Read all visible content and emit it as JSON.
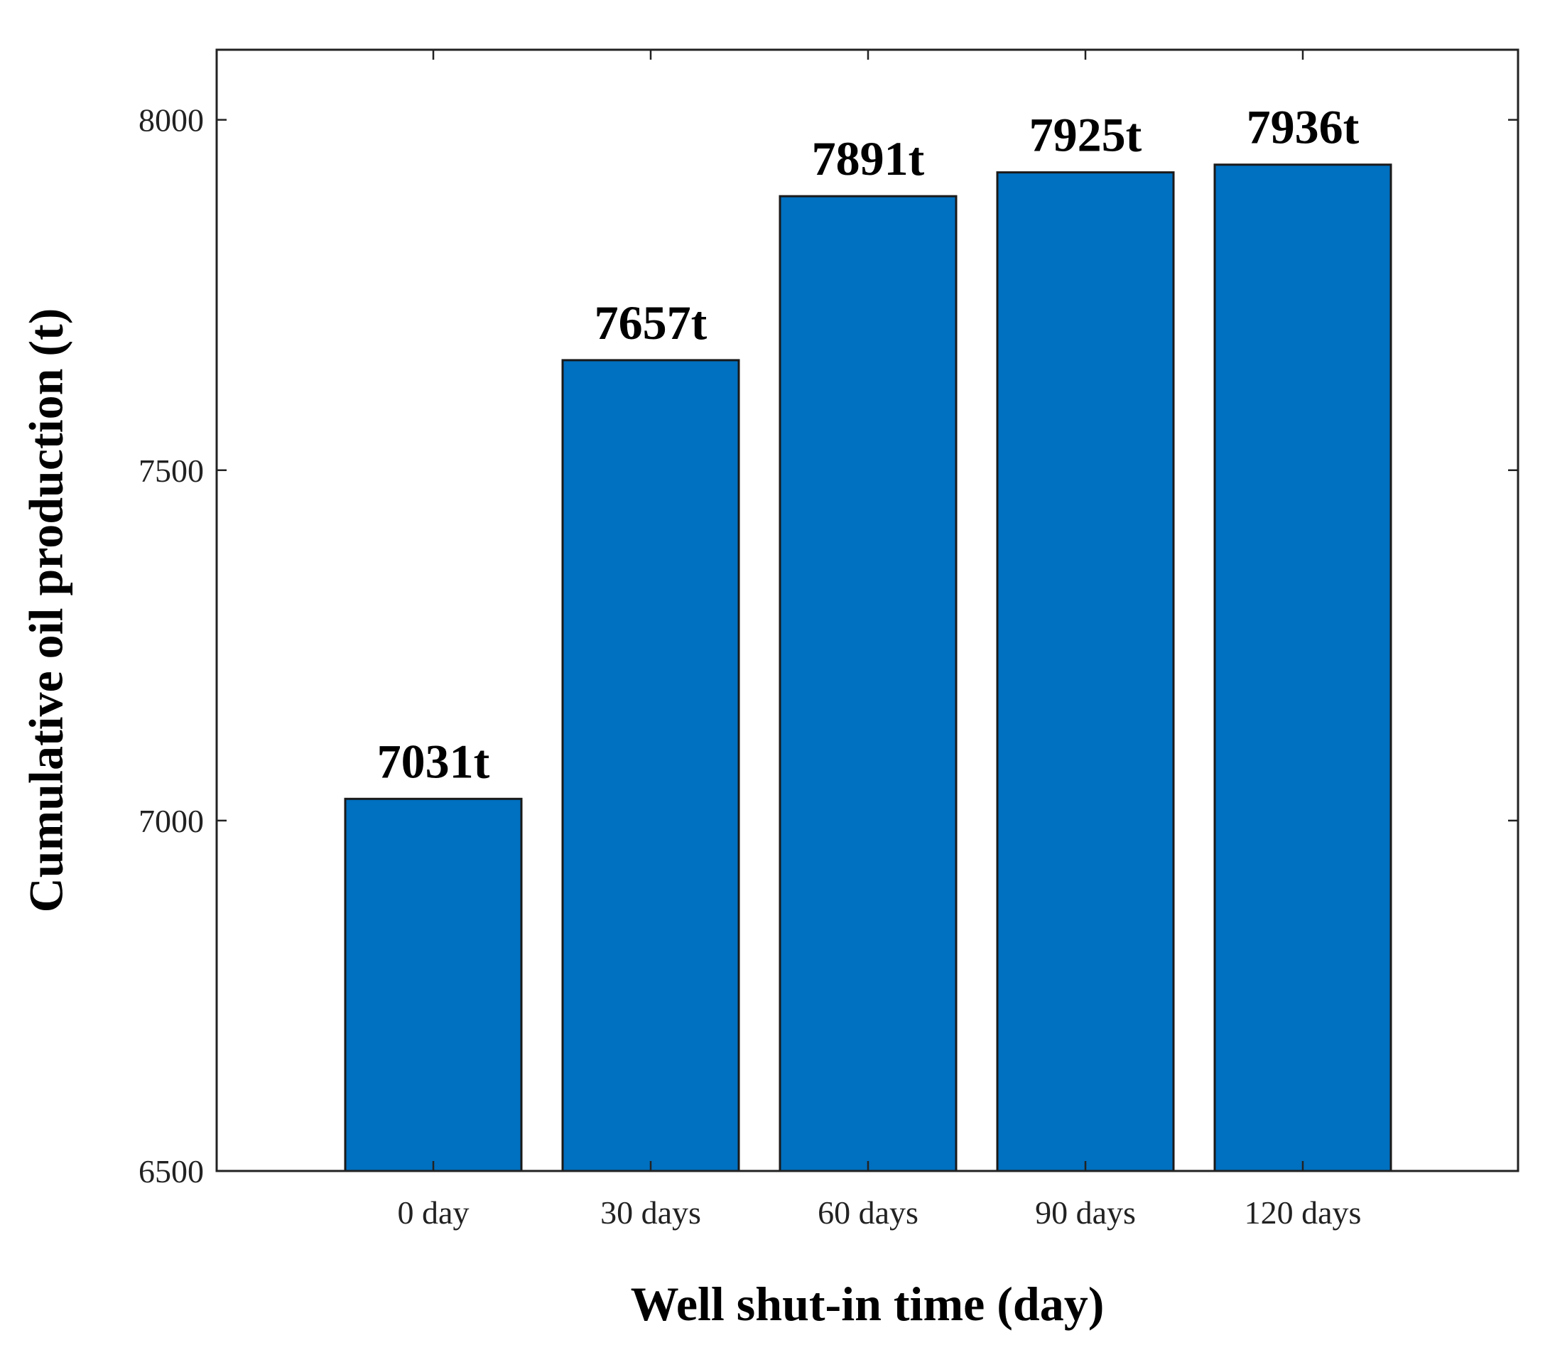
{
  "chart_data": {
    "type": "bar",
    "categories": [
      "0 day",
      "30 days",
      "60 days",
      "90 days",
      "120 days"
    ],
    "values": [
      7031,
      7657,
      7891,
      7925,
      7936
    ],
    "data_labels": [
      "7031t",
      "7657t",
      "7891t",
      "7925t",
      "7936t"
    ],
    "title": "",
    "xlabel": "Well shut-in time (day)",
    "ylabel": "Cumulative oil production (t)",
    "ylim": [
      6500,
      8100
    ],
    "yticks": [
      6500,
      7000,
      7500,
      8000
    ],
    "ytick_labels": [
      "6500",
      "7000",
      "7500",
      "8000"
    ],
    "grid": false,
    "legend": "none",
    "bar_color": "#0070c0",
    "bar_edge_color": "#1a1a1a"
  }
}
